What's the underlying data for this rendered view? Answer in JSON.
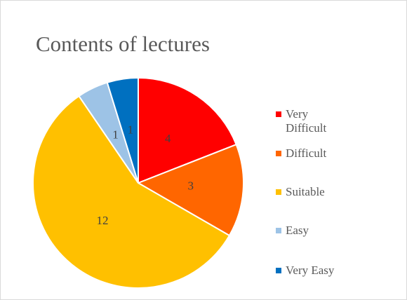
{
  "chart_data": {
    "type": "pie",
    "title": "Contents of lectures",
    "categories": [
      "Very Difficult",
      "Difficult",
      "Suitable",
      "Easy",
      "Very Easy"
    ],
    "values": [
      4,
      3,
      12,
      1,
      1
    ],
    "colors": [
      "#ff0000",
      "#ff6600",
      "#ffc000",
      "#9dc3e6",
      "#0070c0"
    ],
    "legend": "right"
  }
}
